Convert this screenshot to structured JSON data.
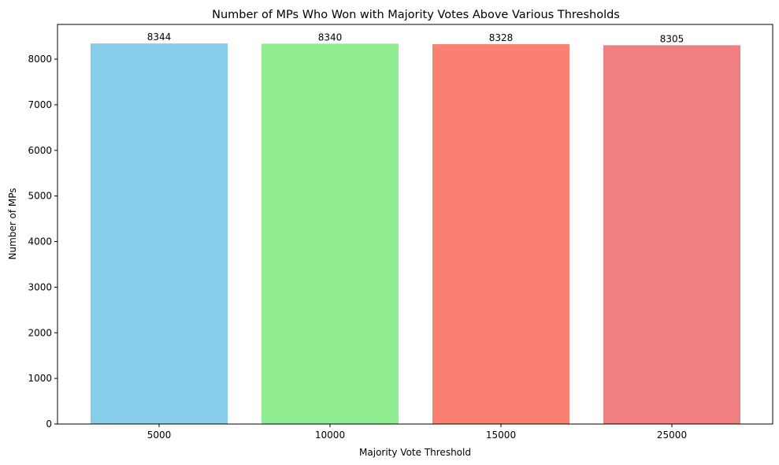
{
  "chart_data": {
    "type": "bar",
    "title": "Number of MPs Who Won with Majority Votes Above Various Thresholds",
    "xlabel": "Majority Vote Threshold",
    "ylabel": "Number of MPs",
    "categories": [
      "5000",
      "10000",
      "15000",
      "25000"
    ],
    "values": [
      8344,
      8340,
      8328,
      8305
    ],
    "data_labels": [
      "8344",
      "8340",
      "8328",
      "8305"
    ],
    "colors": [
      "#87CEEB",
      "#90EE90",
      "#FA8072",
      "#F08080"
    ],
    "ylim": [
      0,
      8761
    ],
    "yticks": [
      0,
      1000,
      2000,
      3000,
      4000,
      5000,
      6000,
      7000,
      8000
    ],
    "ytick_labels": [
      "0",
      "1000",
      "2000",
      "3000",
      "4000",
      "5000",
      "6000",
      "7000",
      "8000"
    ],
    "grid": false,
    "legend": "none"
  }
}
